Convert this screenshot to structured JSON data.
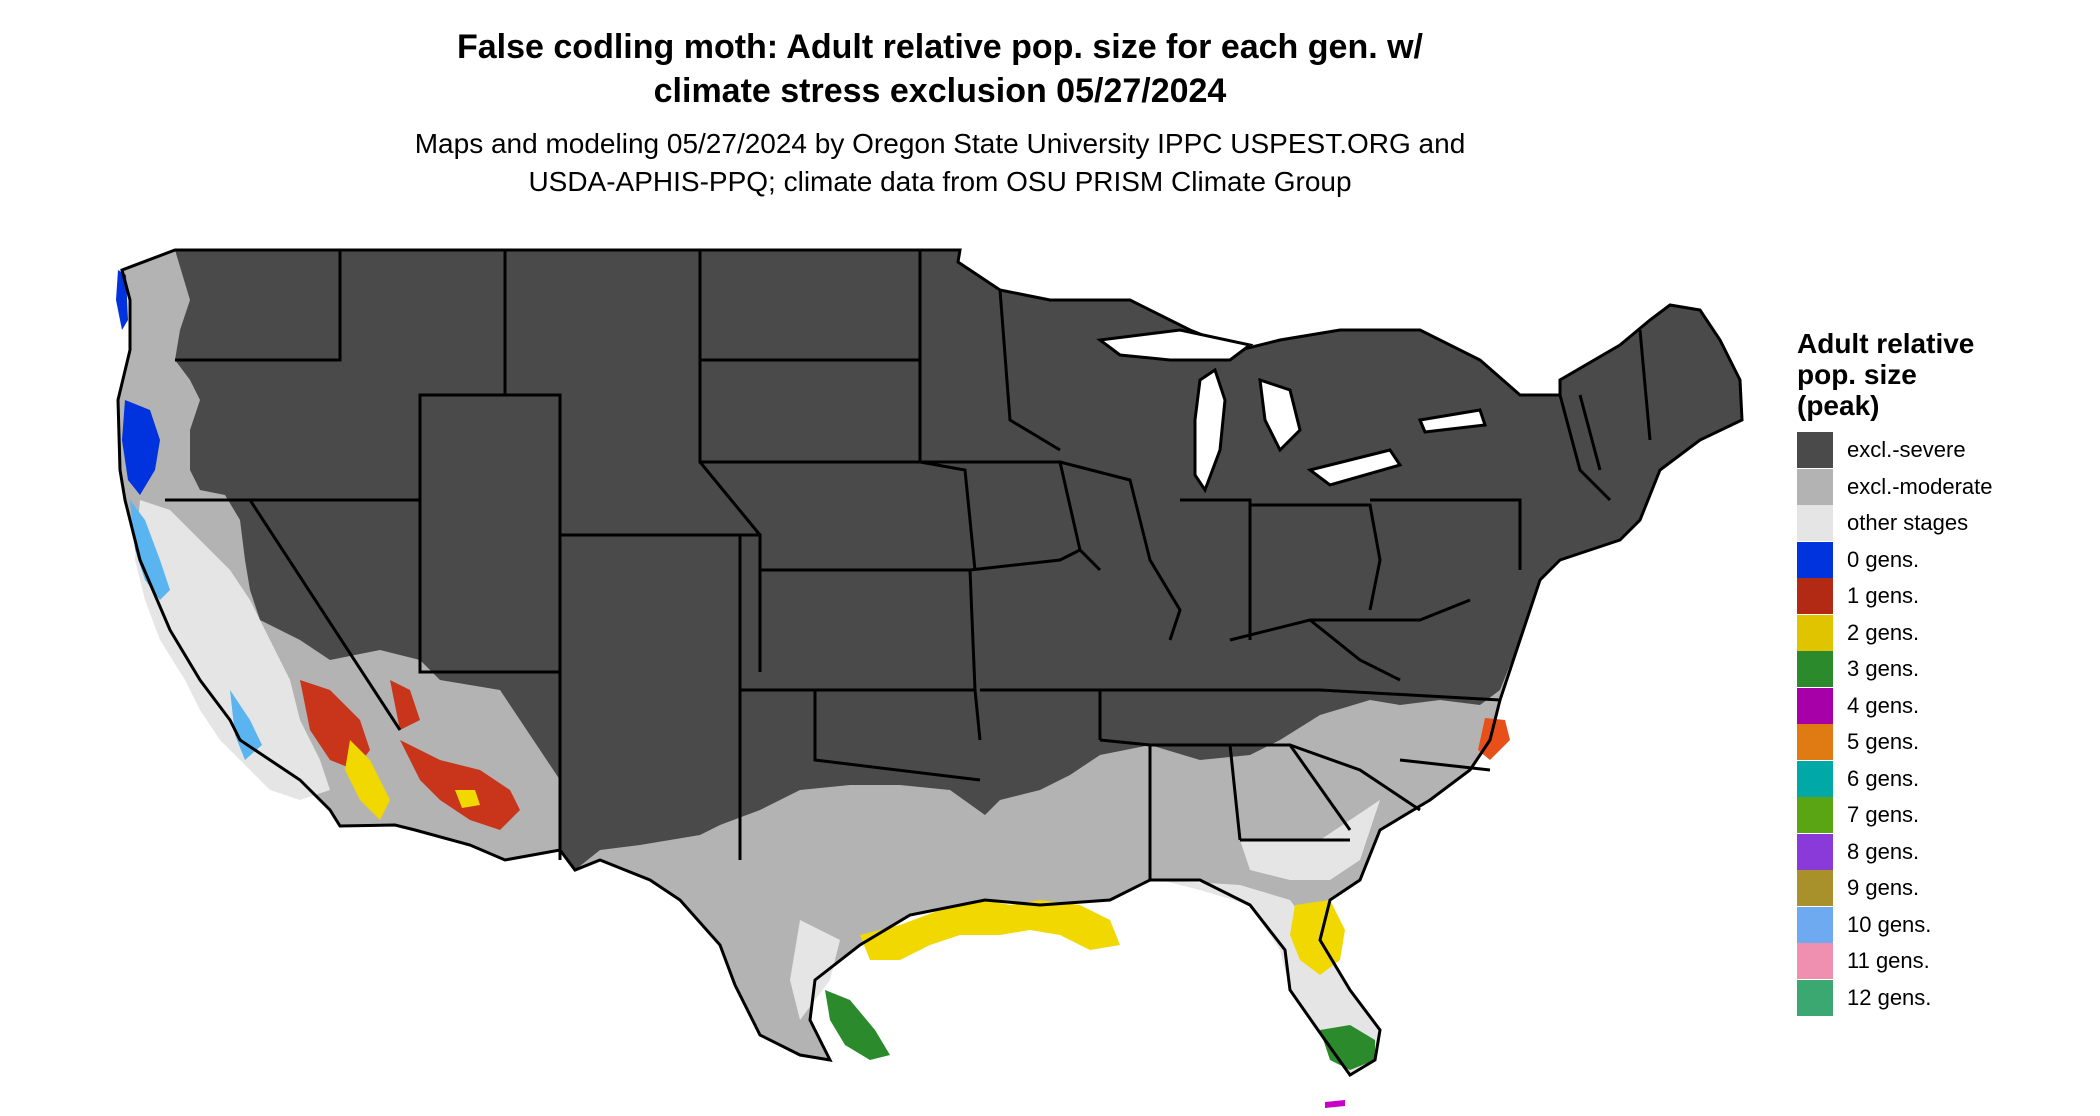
{
  "title": {
    "line1": "False codling moth: Adult relative pop. size for each gen. w/",
    "line2": "climate stress exclusion 05/27/2024"
  },
  "subtitle": {
    "line1": "Maps and modeling 05/27/2024 by Oregon State University IPPC USPEST.ORG and",
    "line2": "USDA-APHIS-PPQ; climate data from OSU PRISM Climate Group"
  },
  "legend": {
    "title_line1": "Adult relative",
    "title_line2": "pop. size",
    "title_line3": "(peak)",
    "items": [
      {
        "label": "excl.-severe",
        "color": "#4a4a4a"
      },
      {
        "label": "excl.-moderate",
        "color": "#b3b3b3"
      },
      {
        "label": "other stages",
        "color": "#e5e5e5"
      },
      {
        "label": "0 gens.",
        "color": "#0033dd"
      },
      {
        "label": "1 gens.",
        "color": "#b22a14"
      },
      {
        "label": "2 gens.",
        "color": "#e0c400"
      },
      {
        "label": "3 gens.",
        "color": "#2b8a2b"
      },
      {
        "label": "4 gens.",
        "color": "#a800a8"
      },
      {
        "label": "5 gens.",
        "color": "#e07b14"
      },
      {
        "label": "6 gens.",
        "color": "#00a8a8"
      },
      {
        "label": "7 gens.",
        "color": "#5aa514"
      },
      {
        "label": "8 gens.",
        "color": "#8a3ad9"
      },
      {
        "label": "9 gens.",
        "color": "#a8902a"
      },
      {
        "label": "10 gens.",
        "color": "#6eaaf0"
      },
      {
        "label": "11 gens.",
        "color": "#f090b0"
      },
      {
        "label": "12 gens.",
        "color": "#3aa870"
      }
    ]
  },
  "map_colors": {
    "severe": "#4a4a4a",
    "moderate": "#b3b3b3",
    "other": "#e5e5e5",
    "gen0": "#0033dd",
    "gen0_light": "#5ab4f0",
    "gen1": "#c8351a",
    "gen2": "#f0d800",
    "gen3": "#2b8a2b",
    "gen4": "#c800c8",
    "gen5": "#e8501a",
    "border": "#000000"
  }
}
